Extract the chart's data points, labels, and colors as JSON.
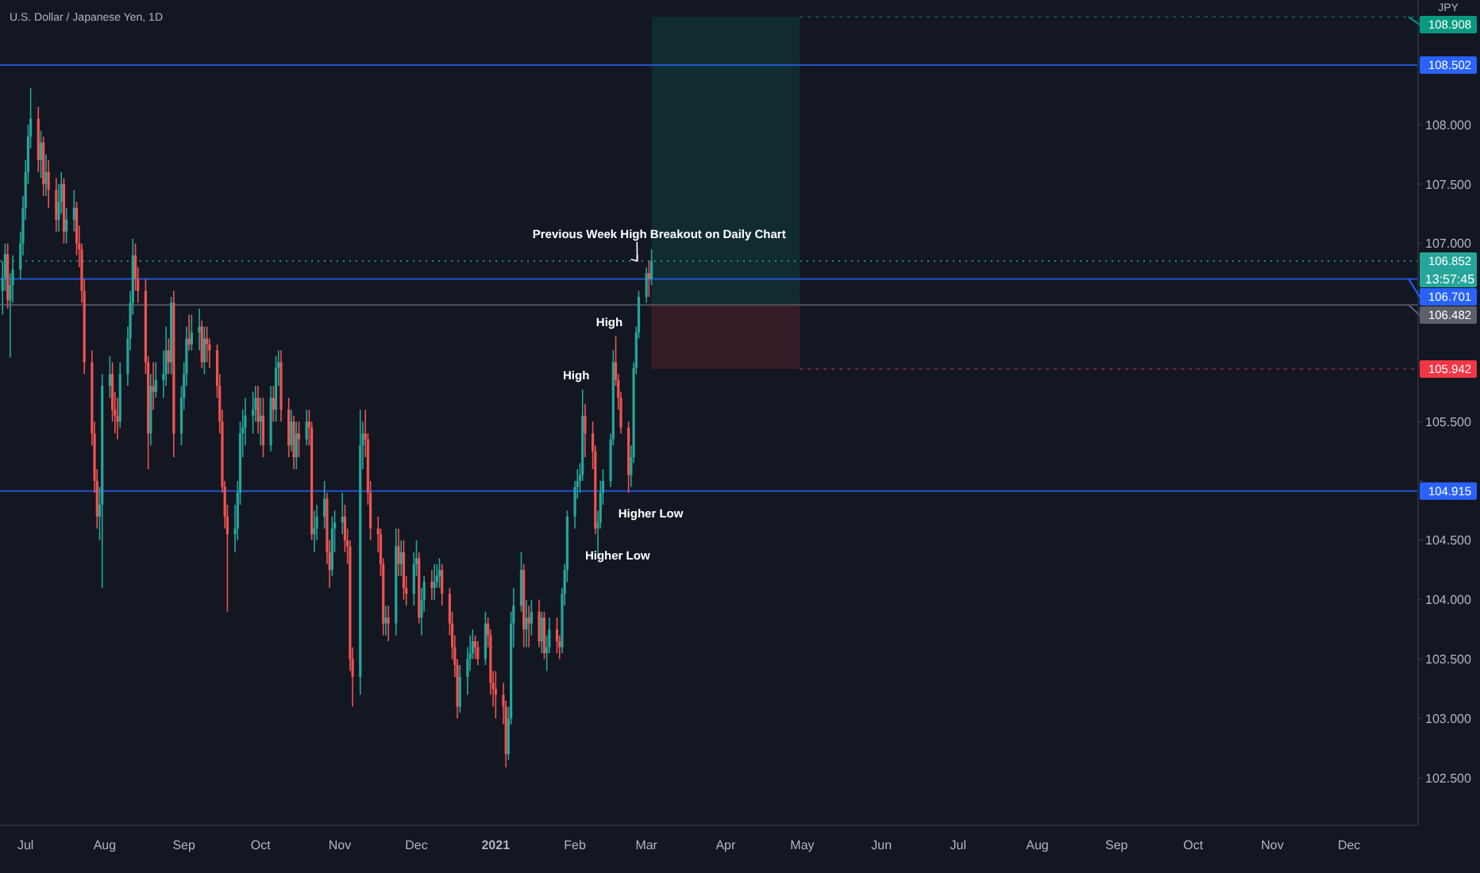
{
  "chart_data": {
    "type": "candlestick",
    "title": "U.S. Dollar / Japanese Yen, 1D",
    "ylabel": "JPY",
    "x": [
      "2020-06-22",
      "2020-06-23",
      "2020-06-24",
      "2020-06-25",
      "2020-06-26",
      "2020-06-29",
      "2020-06-30",
      "2020-07-01",
      "2020-07-02",
      "2020-07-03",
      "2020-07-06",
      "2020-07-07",
      "2020-07-08",
      "2020-07-09",
      "2020-07-10",
      "2020-07-13",
      "2020-07-14",
      "2020-07-15",
      "2020-07-16",
      "2020-07-17",
      "2020-07-20",
      "2020-07-21",
      "2020-07-22",
      "2020-07-23",
      "2020-07-24",
      "2020-07-27",
      "2020-07-28",
      "2020-07-29",
      "2020-07-30",
      "2020-07-31",
      "2020-08-03",
      "2020-08-04",
      "2020-08-05",
      "2020-08-06",
      "2020-08-07",
      "2020-08-10",
      "2020-08-11",
      "2020-08-12",
      "2020-08-13",
      "2020-08-14",
      "2020-08-17",
      "2020-08-18",
      "2020-08-19",
      "2020-08-20",
      "2020-08-21",
      "2020-08-24",
      "2020-08-25",
      "2020-08-26",
      "2020-08-27",
      "2020-08-28",
      "2020-08-31",
      "2020-09-01",
      "2020-09-02",
      "2020-09-03",
      "2020-09-04",
      "2020-09-07",
      "2020-09-08",
      "2020-09-09",
      "2020-09-10",
      "2020-09-11",
      "2020-09-14",
      "2020-09-15",
      "2020-09-16",
      "2020-09-17",
      "2020-09-18",
      "2020-09-21",
      "2020-09-22",
      "2020-09-23",
      "2020-09-24",
      "2020-09-25",
      "2020-09-28",
      "2020-09-29",
      "2020-09-30",
      "2020-10-01",
      "2020-10-02",
      "2020-10-05",
      "2020-10-06",
      "2020-10-07",
      "2020-10-08",
      "2020-10-09",
      "2020-10-12",
      "2020-10-13",
      "2020-10-14",
      "2020-10-15",
      "2020-10-16",
      "2020-10-19",
      "2020-10-20",
      "2020-10-21",
      "2020-10-22",
      "2020-10-23",
      "2020-10-26",
      "2020-10-27",
      "2020-10-28",
      "2020-10-29",
      "2020-10-30",
      "2020-11-02",
      "2020-11-03",
      "2020-11-04",
      "2020-11-05",
      "2020-11-06",
      "2020-11-09",
      "2020-11-10",
      "2020-11-11",
      "2020-11-12",
      "2020-11-13",
      "2020-11-16",
      "2020-11-17",
      "2020-11-18",
      "2020-11-19",
      "2020-11-20",
      "2020-11-23",
      "2020-11-24",
      "2020-11-25",
      "2020-11-26",
      "2020-11-27",
      "2020-11-30",
      "2020-12-01",
      "2020-12-02",
      "2020-12-03",
      "2020-12-04",
      "2020-12-07",
      "2020-12-08",
      "2020-12-09",
      "2020-12-10",
      "2020-12-11",
      "2020-12-14",
      "2020-12-15",
      "2020-12-16",
      "2020-12-17",
      "2020-12-18",
      "2020-12-21",
      "2020-12-22",
      "2020-12-23",
      "2020-12-24",
      "2020-12-25",
      "2020-12-28",
      "2020-12-29",
      "2020-12-30",
      "2020-12-31",
      "2021-01-01",
      "2021-01-04",
      "2021-01-05",
      "2021-01-06",
      "2021-01-07",
      "2021-01-08",
      "2021-01-11",
      "2021-01-12",
      "2021-01-13",
      "2021-01-14",
      "2021-01-15",
      "2021-01-18",
      "2021-01-19",
      "2021-01-20",
      "2021-01-21",
      "2021-01-22",
      "2021-01-25",
      "2021-01-26",
      "2021-01-27",
      "2021-01-28",
      "2021-01-29",
      "2021-02-01",
      "2021-02-02",
      "2021-02-03",
      "2021-02-04",
      "2021-02-05",
      "2021-02-08",
      "2021-02-09",
      "2021-02-10",
      "2021-02-11",
      "2021-02-12",
      "2021-02-15",
      "2021-02-16",
      "2021-02-17",
      "2021-02-18",
      "2021-02-19",
      "2021-02-22",
      "2021-02-23",
      "2021-02-24",
      "2021-02-25",
      "2021-02-26",
      "2021-03-01",
      "2021-03-02",
      "2021-03-03"
    ],
    "ohlc": [
      [
        106.6,
        106.85,
        106.4,
        106.71
      ],
      [
        106.71,
        107.0,
        106.6,
        106.91
      ],
      [
        106.91,
        107.0,
        106.45,
        106.52
      ],
      [
        106.52,
        106.75,
        106.04,
        106.65
      ],
      [
        106.65,
        106.9,
        106.5,
        106.78
      ],
      [
        106.78,
        107.1,
        106.7,
        107.0
      ],
      [
        107.0,
        107.4,
        106.9,
        107.3
      ],
      [
        107.3,
        107.7,
        107.2,
        107.6
      ],
      [
        107.6,
        108.0,
        107.5,
        107.9
      ],
      [
        107.9,
        108.31,
        107.8,
        108.05
      ],
      [
        108.05,
        108.15,
        107.6,
        107.7
      ],
      [
        107.7,
        107.95,
        107.55,
        107.85
      ],
      [
        107.85,
        107.9,
        107.4,
        107.5
      ],
      [
        107.5,
        107.75,
        107.4,
        107.6
      ],
      [
        107.6,
        107.7,
        107.3,
        107.45
      ],
      [
        107.45,
        107.55,
        107.1,
        107.2
      ],
      [
        107.2,
        107.5,
        107.1,
        107.35
      ],
      [
        107.35,
        107.6,
        107.25,
        107.5
      ],
      [
        107.5,
        107.55,
        107.0,
        107.1
      ],
      [
        107.1,
        107.3,
        107.0,
        107.2
      ],
      [
        107.2,
        107.45,
        107.1,
        107.3
      ],
      [
        107.3,
        107.35,
        106.9,
        107.0
      ],
      [
        107.0,
        107.15,
        106.8,
        106.95
      ],
      [
        106.95,
        107.0,
        106.5,
        106.6
      ],
      [
        106.6,
        106.7,
        105.9,
        106.0
      ],
      [
        106.0,
        106.1,
        105.3,
        105.4
      ],
      [
        105.4,
        105.5,
        104.9,
        105.0
      ],
      [
        105.0,
        105.1,
        104.6,
        104.7
      ],
      [
        104.7,
        104.95,
        104.5,
        104.8
      ],
      [
        104.8,
        105.9,
        104.1,
        105.8
      ],
      [
        105.8,
        106.05,
        105.7,
        105.9
      ],
      [
        105.9,
        106.0,
        105.5,
        105.6
      ],
      [
        105.6,
        105.75,
        105.4,
        105.55
      ],
      [
        105.55,
        105.7,
        105.35,
        105.5
      ],
      [
        105.5,
        106.0,
        105.45,
        105.9
      ],
      [
        105.9,
        106.3,
        105.8,
        106.2
      ],
      [
        106.2,
        106.6,
        106.1,
        106.5
      ],
      [
        106.5,
        107.04,
        106.4,
        106.9
      ],
      [
        106.9,
        107.0,
        106.6,
        106.7
      ],
      [
        106.7,
        106.8,
        106.5,
        106.6
      ],
      [
        106.6,
        106.7,
        105.9,
        106.0
      ],
      [
        106.0,
        106.05,
        105.1,
        105.4
      ],
      [
        105.4,
        105.9,
        105.3,
        105.8
      ],
      [
        105.8,
        106.0,
        105.6,
        105.75
      ],
      [
        105.75,
        106.0,
        105.7,
        105.85
      ],
      [
        105.85,
        106.1,
        105.7,
        105.9
      ],
      [
        105.9,
        106.3,
        105.8,
        106.1
      ],
      [
        106.1,
        106.2,
        105.9,
        106.0
      ],
      [
        106.0,
        106.55,
        105.9,
        106.5
      ],
      [
        106.5,
        106.6,
        105.2,
        105.4
      ],
      [
        105.4,
        105.8,
        105.3,
        105.7
      ],
      [
        105.7,
        106.0,
        105.6,
        105.9
      ],
      [
        105.9,
        106.3,
        105.8,
        106.2
      ],
      [
        106.2,
        106.4,
        106.1,
        106.15
      ],
      [
        106.15,
        106.4,
        106.1,
        106.25
      ],
      [
        106.25,
        106.45,
        106.1,
        106.3
      ],
      [
        106.3,
        106.35,
        105.95,
        106.0
      ],
      [
        106.0,
        106.3,
        105.9,
        106.2
      ],
      [
        106.2,
        106.3,
        106.0,
        106.15
      ],
      [
        106.15,
        106.2,
        105.95,
        106.1
      ],
      [
        106.1,
        106.15,
        105.7,
        105.8
      ],
      [
        105.8,
        105.9,
        105.4,
        105.5
      ],
      [
        105.5,
        105.6,
        104.9,
        104.95
      ],
      [
        104.95,
        105.0,
        104.6,
        104.7
      ],
      [
        104.7,
        104.8,
        103.9,
        104.55
      ],
      [
        104.55,
        104.8,
        104.4,
        104.6
      ],
      [
        104.6,
        105.0,
        104.5,
        104.9
      ],
      [
        104.9,
        105.5,
        104.8,
        105.4
      ],
      [
        105.4,
        105.6,
        105.2,
        105.45
      ],
      [
        105.45,
        105.7,
        105.3,
        105.55
      ],
      [
        105.55,
        105.75,
        105.4,
        105.6
      ],
      [
        105.6,
        105.8,
        105.5,
        105.7
      ],
      [
        105.7,
        105.8,
        105.4,
        105.5
      ],
      [
        105.5,
        105.7,
        105.3,
        105.55
      ],
      [
        105.55,
        105.7,
        105.2,
        105.3
      ],
      [
        105.3,
        105.8,
        105.25,
        105.7
      ],
      [
        105.7,
        105.8,
        105.5,
        105.6
      ],
      [
        105.6,
        106.05,
        105.5,
        105.95
      ],
      [
        105.95,
        106.1,
        105.8,
        106.0
      ],
      [
        106.0,
        106.1,
        105.5,
        105.6
      ],
      [
        105.6,
        105.7,
        105.2,
        105.3
      ],
      [
        105.3,
        105.6,
        105.25,
        105.5
      ],
      [
        105.5,
        105.55,
        105.1,
        105.2
      ],
      [
        105.2,
        105.5,
        105.1,
        105.4
      ],
      [
        105.4,
        105.5,
        105.2,
        105.35
      ],
      [
        105.35,
        105.6,
        105.3,
        105.5
      ],
      [
        105.5,
        105.6,
        105.3,
        105.45
      ],
      [
        105.45,
        105.5,
        104.5,
        104.55
      ],
      [
        104.55,
        104.75,
        104.4,
        104.6
      ],
      [
        104.6,
        104.8,
        104.5,
        104.7
      ],
      [
        104.7,
        105.0,
        104.6,
        104.85
      ],
      [
        104.85,
        104.9,
        104.3,
        104.4
      ],
      [
        104.4,
        104.5,
        104.1,
        104.25
      ],
      [
        104.25,
        104.7,
        104.2,
        104.6
      ],
      [
        104.6,
        104.75,
        104.4,
        104.65
      ],
      [
        104.65,
        104.9,
        104.55,
        104.7
      ],
      [
        104.7,
        104.8,
        104.4,
        104.5
      ],
      [
        104.5,
        104.6,
        104.3,
        104.45
      ],
      [
        104.45,
        104.5,
        103.4,
        103.5
      ],
      [
        103.5,
        103.6,
        103.1,
        103.35
      ],
      [
        103.35,
        105.6,
        103.2,
        105.3
      ],
      [
        105.3,
        105.5,
        105.1,
        105.4
      ],
      [
        105.4,
        105.6,
        105.2,
        105.35
      ],
      [
        105.35,
        105.4,
        104.8,
        104.9
      ],
      [
        104.9,
        105.0,
        104.5,
        104.6
      ],
      [
        104.6,
        104.7,
        104.4,
        104.55
      ],
      [
        104.55,
        104.6,
        104.2,
        104.3
      ],
      [
        104.3,
        104.35,
        103.7,
        103.8
      ],
      [
        103.8,
        103.95,
        103.7,
        103.85
      ],
      [
        103.85,
        103.95,
        103.65,
        103.8
      ],
      [
        103.8,
        104.6,
        103.7,
        104.45
      ],
      [
        104.45,
        104.6,
        104.2,
        104.3
      ],
      [
        104.3,
        104.5,
        104.2,
        104.4
      ],
      [
        104.4,
        104.5,
        104.0,
        104.1
      ],
      [
        104.1,
        104.2,
        103.95,
        104.05
      ],
      [
        104.05,
        104.4,
        103.95,
        104.3
      ],
      [
        104.3,
        104.5,
        104.2,
        104.35
      ],
      [
        104.35,
        104.4,
        103.8,
        103.85
      ],
      [
        103.85,
        104.1,
        103.7,
        104.0
      ],
      [
        104.0,
        104.2,
        103.9,
        104.15
      ],
      [
        104.15,
        104.25,
        104.0,
        104.1
      ],
      [
        104.1,
        104.3,
        104.0,
        104.15
      ],
      [
        104.15,
        104.3,
        104.1,
        104.2
      ],
      [
        104.2,
        104.35,
        104.1,
        104.25
      ],
      [
        104.25,
        104.3,
        103.95,
        104.05
      ],
      [
        104.05,
        104.1,
        103.7,
        103.8
      ],
      [
        103.8,
        103.9,
        103.5,
        103.6
      ],
      [
        103.6,
        103.7,
        103.35,
        103.45
      ],
      [
        103.45,
        103.5,
        103.0,
        103.1
      ],
      [
        103.1,
        103.45,
        103.05,
        103.35
      ],
      [
        103.35,
        103.6,
        103.2,
        103.5
      ],
      [
        103.5,
        103.7,
        103.4,
        103.55
      ],
      [
        103.55,
        103.75,
        103.5,
        103.65
      ],
      [
        103.65,
        103.7,
        103.5,
        103.6
      ],
      [
        103.6,
        103.65,
        103.45,
        103.5
      ],
      [
        103.5,
        103.9,
        103.45,
        103.8
      ],
      [
        103.8,
        103.85,
        103.6,
        103.7
      ],
      [
        103.7,
        103.75,
        103.2,
        103.3
      ],
      [
        103.3,
        103.4,
        103.1,
        103.25
      ],
      [
        103.25,
        103.4,
        103.0,
        103.2
      ],
      [
        103.2,
        103.3,
        102.95,
        103.1
      ],
      [
        103.1,
        103.15,
        102.59,
        102.7
      ],
      [
        102.7,
        103.1,
        102.65,
        103.0
      ],
      [
        103.0,
        103.9,
        102.95,
        103.8
      ],
      [
        103.8,
        104.1,
        103.6,
        103.95
      ],
      [
        103.95,
        104.4,
        103.9,
        104.25
      ],
      [
        104.25,
        104.3,
        103.6,
        103.75
      ],
      [
        103.75,
        104.0,
        103.6,
        103.85
      ],
      [
        103.85,
        103.95,
        103.6,
        103.8
      ],
      [
        103.8,
        104.0,
        103.7,
        103.9
      ],
      [
        103.9,
        104.0,
        103.6,
        103.65
      ],
      [
        103.65,
        103.9,
        103.55,
        103.85
      ],
      [
        103.85,
        103.9,
        103.5,
        103.55
      ],
      [
        103.55,
        103.7,
        103.4,
        103.6
      ],
      [
        103.6,
        103.85,
        103.55,
        103.75
      ],
      [
        103.75,
        103.85,
        103.55,
        103.65
      ],
      [
        103.65,
        103.7,
        103.5,
        103.6
      ],
      [
        103.6,
        104.1,
        103.55,
        104.05
      ],
      [
        104.05,
        104.3,
        103.95,
        104.25
      ],
      [
        104.25,
        104.75,
        104.15,
        104.7
      ],
      [
        104.7,
        105.0,
        104.6,
        104.95
      ],
      [
        104.95,
        105.1,
        104.85,
        105.0
      ],
      [
        105.0,
        105.15,
        104.9,
        105.05
      ],
      [
        105.05,
        105.77,
        105.0,
        105.55
      ],
      [
        105.55,
        105.65,
        105.2,
        105.4
      ],
      [
        105.4,
        105.5,
        105.1,
        105.25
      ],
      [
        105.25,
        105.3,
        104.55,
        104.6
      ],
      [
        104.6,
        104.75,
        104.35,
        104.65
      ],
      [
        104.65,
        105.0,
        104.6,
        104.9
      ],
      [
        104.9,
        105.1,
        104.8,
        105.0
      ],
      [
        105.0,
        105.4,
        104.95,
        105.35
      ],
      [
        105.35,
        106.1,
        105.3,
        106.0
      ],
      [
        106.0,
        106.22,
        105.8,
        105.85
      ],
      [
        105.85,
        105.9,
        105.6,
        105.7
      ],
      [
        105.7,
        105.75,
        105.4,
        105.45
      ],
      [
        105.45,
        105.5,
        104.9,
        105.05
      ],
      [
        105.05,
        105.3,
        104.95,
        105.2
      ],
      [
        105.2,
        106.0,
        105.15,
        105.95
      ],
      [
        105.95,
        106.3,
        105.9,
        106.25
      ],
      [
        106.25,
        106.6,
        106.2,
        106.55
      ],
      [
        106.55,
        106.8,
        106.5,
        106.75
      ],
      [
        106.75,
        106.85,
        106.55,
        106.7
      ],
      [
        106.7,
        106.95,
        106.65,
        106.852
      ]
    ],
    "colors": [
      "#26a69a",
      "#26a69a",
      "#ef5350",
      "#26a69a",
      "#26a69a",
      "#26a69a",
      "#26a69a",
      "#26a69a",
      "#26a69a",
      "#26a69a",
      "#ef5350",
      "#26a69a",
      "#ef5350",
      "#26a69a",
      "#ef5350",
      "#ef5350",
      "#26a69a",
      "#26a69a",
      "#ef5350",
      "#26a69a",
      "#26a69a",
      "#ef5350",
      "#ef5350",
      "#ef5350",
      "#ef5350",
      "#ef5350",
      "#ef5350",
      "#ef5350",
      "#26a69a",
      "#26a69a",
      "#26a69a",
      "#ef5350",
      "#ef5350",
      "#ef5350",
      "#26a69a",
      "#26a69a",
      "#26a69a",
      "#26a69a",
      "#ef5350",
      "#ef5350",
      "#ef5350",
      "#ef5350",
      "#26a69a",
      "#ef5350",
      "#26a69a",
      "#26a69a",
      "#26a69a",
      "#ef5350",
      "#26a69a",
      "#ef5350",
      "#26a69a",
      "#26a69a",
      "#26a69a",
      "#ef5350",
      "#26a69a",
      "#26a69a",
      "#ef5350",
      "#26a69a",
      "#ef5350",
      "#ef5350",
      "#ef5350",
      "#ef5350",
      "#ef5350",
      "#ef5350",
      "#ef5350",
      "#26a69a",
      "#26a69a",
      "#26a69a",
      "#26a69a",
      "#26a69a",
      "#26a69a",
      "#26a69a",
      "#ef5350",
      "#26a69a",
      "#ef5350",
      "#26a69a",
      "#ef5350",
      "#26a69a",
      "#26a69a",
      "#ef5350",
      "#ef5350",
      "#26a69a",
      "#ef5350",
      "#26a69a",
      "#ef5350",
      "#26a69a",
      "#ef5350",
      "#ef5350",
      "#26a69a",
      "#26a69a",
      "#26a69a",
      "#ef5350",
      "#ef5350",
      "#26a69a",
      "#26a69a",
      "#26a69a",
      "#ef5350",
      "#ef5350",
      "#ef5350",
      "#ef5350",
      "#26a69a",
      "#26a69a",
      "#ef5350",
      "#ef5350",
      "#ef5350",
      "#ef5350",
      "#ef5350",
      "#ef5350",
      "#26a69a",
      "#ef5350",
      "#26a69a",
      "#ef5350",
      "#26a69a",
      "#ef5350",
      "#ef5350",
      "#26a69a",
      "#26a69a",
      "#ef5350",
      "#26a69a",
      "#26a69a",
      "#ef5350",
      "#26a69a",
      "#26a69a",
      "#26a69a",
      "#ef5350",
      "#ef5350",
      "#ef5350",
      "#ef5350",
      "#ef5350",
      "#26a69a",
      "#26a69a",
      "#26a69a",
      "#26a69a",
      "#ef5350",
      "#ef5350",
      "#26a69a",
      "#ef5350",
      "#ef5350",
      "#ef5350",
      "#ef5350",
      "#ef5350",
      "#ef5350",
      "#26a69a",
      "#26a69a",
      "#26a69a",
      "#26a69a",
      "#ef5350",
      "#26a69a",
      "#ef5350",
      "#26a69a",
      "#ef5350",
      "#26a69a",
      "#ef5350",
      "#26a69a",
      "#26a69a",
      "#ef5350",
      "#ef5350",
      "#26a69a",
      "#26a69a",
      "#26a69a",
      "#26a69a",
      "#26a69a",
      "#26a69a",
      "#26a69a",
      "#ef5350",
      "#ef5350",
      "#ef5350",
      "#26a69a",
      "#26a69a",
      "#26a69a",
      "#26a69a",
      "#26a69a",
      "#ef5350",
      "#ef5350",
      "#ef5350",
      "#ef5350",
      "#26a69a",
      "#26a69a",
      "#26a69a",
      "#26a69a",
      "#26a69a",
      "#ef5350",
      "#26a69a"
    ],
    "xlim": [
      "2020-06-21",
      "2021-12-28"
    ],
    "xticks": [
      {
        "value": "2020-07-01",
        "label": "Jul"
      },
      {
        "value": "2020-08-01",
        "label": "Aug"
      },
      {
        "value": "2020-09-01",
        "label": "Sep"
      },
      {
        "value": "2020-10-01",
        "label": "Oct"
      },
      {
        "value": "2020-11-01",
        "label": "Nov"
      },
      {
        "value": "2020-12-01",
        "label": "Dec"
      },
      {
        "value": "2021-01-01",
        "label": "2021"
      },
      {
        "value": "2021-02-01",
        "label": "Feb"
      },
      {
        "value": "2021-03-01",
        "label": "Mar"
      },
      {
        "value": "2021-04-01",
        "label": "Apr"
      },
      {
        "value": "2021-05-01",
        "label": "May"
      },
      {
        "value": "2021-06-01",
        "label": "Jun"
      },
      {
        "value": "2021-07-01",
        "label": "Jul"
      },
      {
        "value": "2021-08-01",
        "label": "Aug"
      },
      {
        "value": "2021-09-01",
        "label": "Sep"
      },
      {
        "value": "2021-10-01",
        "label": "Oct"
      },
      {
        "value": "2021-11-01",
        "label": "Nov"
      },
      {
        "value": "2021-12-01",
        "label": "Dec"
      }
    ],
    "ylim": [
      102.1,
      109.05
    ],
    "yticks": [
      {
        "value": 102.5,
        "label": "102.500"
      },
      {
        "value": 103,
        "label": "103.000"
      },
      {
        "value": 103.5,
        "label": "103.500"
      },
      {
        "value": 104,
        "label": "104.000"
      },
      {
        "value": 104.5,
        "label": "104.500"
      },
      {
        "value": 105,
        "label": null
      },
      {
        "value": 105.5,
        "label": "105.500"
      },
      {
        "value": 106,
        "label": null
      },
      {
        "value": 106.5,
        "label": null
      },
      {
        "value": 107,
        "label": "107.000"
      },
      {
        "value": 107.5,
        "label": "107.500"
      },
      {
        "value": 108,
        "label": "108.000"
      },
      {
        "value": 108.5,
        "label": null
      }
    ],
    "ref_lines": [
      {
        "axis": "y",
        "value": 108.502,
        "label": "108.502",
        "color": "#2962ff"
      },
      {
        "axis": "y",
        "value": 106.852,
        "label": "106.852",
        "color": "#26a69a",
        "line_style": "dotted"
      },
      {
        "axis": "y",
        "value": 106.701,
        "label": "106.701",
        "color": "#2962ff"
      },
      {
        "axis": "y",
        "value": 106.482,
        "label": "106.482",
        "color": "#5d606b"
      },
      {
        "axis": "y",
        "value": 104.915,
        "label": "104.915",
        "color": "#2962ff"
      }
    ],
    "bands": [
      {
        "axis": "y",
        "from": 106.482,
        "to": 108.908,
        "label": "108.908",
        "color": "#089981"
      },
      {
        "axis": "y",
        "from": 105.942,
        "to": 106.482,
        "label": "105.942",
        "color": "#f23645"
      }
    ],
    "annotations": [
      {
        "text": "Previous Week High Breakout on Daily Chart",
        "x": "2021-03-06",
        "y": 107.08
      },
      {
        "text": "High",
        "x": "2021-02-04",
        "y": 105.77
      },
      {
        "text": "High",
        "x": "2021-02-17",
        "y": 106.22
      },
      {
        "text": "Higher Low",
        "x": "2021-02-22",
        "y": 104.9
      },
      {
        "text": "Higher Low",
        "x": "2021-02-09",
        "y": 104.55
      },
      "13:57:45"
    ]
  }
}
